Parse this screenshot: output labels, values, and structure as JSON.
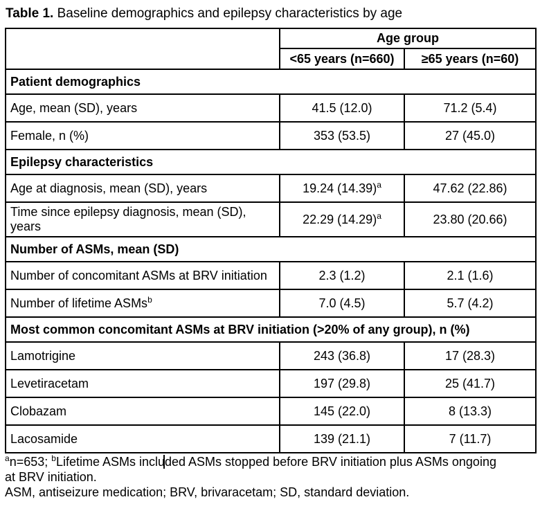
{
  "title": {
    "label": "Table 1.",
    "text": "Baseline demographics and epilepsy characteristics by age"
  },
  "colors": {
    "text": "#000000",
    "background": "#ffffff",
    "border": "#000000"
  },
  "table": {
    "header": {
      "group_label": "Age group",
      "columns": [
        "<65 years (n=660)",
        "≥65 years (n=60)"
      ]
    },
    "rows": [
      {
        "type": "section",
        "label": "Patient demographics"
      },
      {
        "type": "data",
        "label": "Age, mean (SD), years",
        "values": [
          "41.5 (12.0)",
          "71.2 (5.4)"
        ]
      },
      {
        "type": "data",
        "label": "Female, n (%)",
        "values": [
          "353 (53.5)",
          "27 (45.0)"
        ]
      },
      {
        "type": "section",
        "label": "Epilepsy characteristics"
      },
      {
        "type": "data",
        "label": "Age at diagnosis, mean (SD), years",
        "values": [
          "19.24 (14.39)^a",
          "47.62 (22.86)"
        ]
      },
      {
        "type": "data",
        "label": "Time since epilepsy diagnosis, mean (SD), years",
        "values": [
          "22.29 (14.29)^a",
          "23.80 (20.66)"
        ]
      },
      {
        "type": "section",
        "label": "Number of ASMs, mean (SD)"
      },
      {
        "type": "data",
        "label": "Number of concomitant ASMs at BRV initiation",
        "values": [
          "2.3 (1.2)",
          "2.1 (1.6)"
        ]
      },
      {
        "type": "data",
        "label": "Number of lifetime ASMs^b",
        "values": [
          "7.0 (4.5)",
          "5.7 (4.2)"
        ]
      },
      {
        "type": "section",
        "label": "Most common concomitant ASMs at BRV initiation (>20% of any group), n (%)"
      },
      {
        "type": "data",
        "label": "Lamotrigine",
        "values": [
          "243 (36.8)",
          "17 (28.3)"
        ]
      },
      {
        "type": "data",
        "label": "Levetiracetam",
        "values": [
          "197 (29.8)",
          "25 (41.7)"
        ]
      },
      {
        "type": "data",
        "label": "Clobazam",
        "values": [
          "145 (22.0)",
          "8 (13.3)"
        ]
      },
      {
        "type": "data",
        "label": "Lacosamide",
        "values": [
          "139 (21.1)",
          "7 (11.7)"
        ]
      }
    ]
  },
  "footnotes": [
    "^an=653; ^bLifetime ASMs included ASMs stopped before BRV initiation plus ASMs ongoing",
    "at BRV initiation.",
    "ASM, antiseizure medication; BRV, brivaracetam; SD, standard deviation."
  ]
}
